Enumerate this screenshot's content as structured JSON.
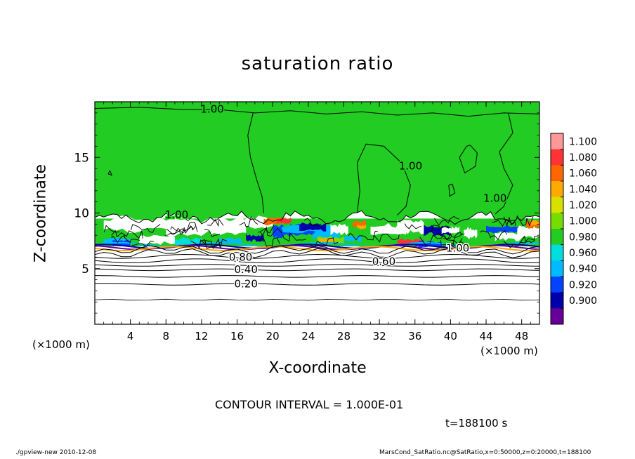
{
  "chart_data": {
    "type": "heatmap",
    "title": "saturation ratio",
    "xlabel": "X-coordinate",
    "ylabel": "Z-coordinate",
    "x_unit": "(×1000 m)",
    "xlim": [
      0,
      50
    ],
    "ylim": [
      0,
      20
    ],
    "x_ticks": [
      4,
      8,
      12,
      16,
      20,
      24,
      28,
      32,
      36,
      40,
      44,
      48
    ],
    "y_ticks": [
      5,
      10,
      15
    ],
    "colorbar": {
      "levels": [
        1.1,
        1.08,
        1.06,
        1.04,
        1.02,
        1.0,
        0.98,
        0.96,
        0.94,
        0.92,
        0.9
      ],
      "labels": [
        "1.100",
        "1.080",
        "1.060",
        "1.040",
        "1.020",
        "1.000",
        "0.980",
        "0.960",
        "0.940",
        "0.920",
        "0.900"
      ],
      "colors": [
        "#ff9999",
        "#ff3333",
        "#ff6600",
        "#ffaa00",
        "#d8e000",
        "#77dd00",
        "#22cc22",
        "#00dddd",
        "#00bbff",
        "#0044ff",
        "#0000aa",
        "#660099"
      ]
    },
    "contour_labels": [
      {
        "text": "1.00",
        "x": 13.2,
        "z": 19.3
      },
      {
        "text": "1.00",
        "x": 35.5,
        "z": 14.2
      },
      {
        "text": "1.00",
        "x": 45.0,
        "z": 11.3
      },
      {
        "text": "1.00",
        "x": 9.2,
        "z": 9.8
      },
      {
        "text": "1.00",
        "x": 40.8,
        "z": 6.8
      },
      {
        "text": "0.80",
        "x": 16.4,
        "z": 6.0
      },
      {
        "text": "0.60",
        "x": 32.5,
        "z": 5.6
      },
      {
        "text": "0.40",
        "x": 17.0,
        "z": 4.9
      },
      {
        "text": "0.20",
        "x": 17.0,
        "z": 3.6
      }
    ],
    "subsaturated_isolines": [
      0.2,
      0.3,
      0.4,
      0.5,
      0.6,
      0.7,
      0.8,
      0.9
    ]
  },
  "annotation": {
    "contour_interval": "CONTOUR INTERVAL = 1.000E-01",
    "time": "t=188100 s"
  },
  "footer": {
    "left": "./gpview-new   2010-12-08",
    "right": "MarsCond_SatRatio.nc@SatRatio,x=0:50000,z=0:20000,t=188100"
  }
}
